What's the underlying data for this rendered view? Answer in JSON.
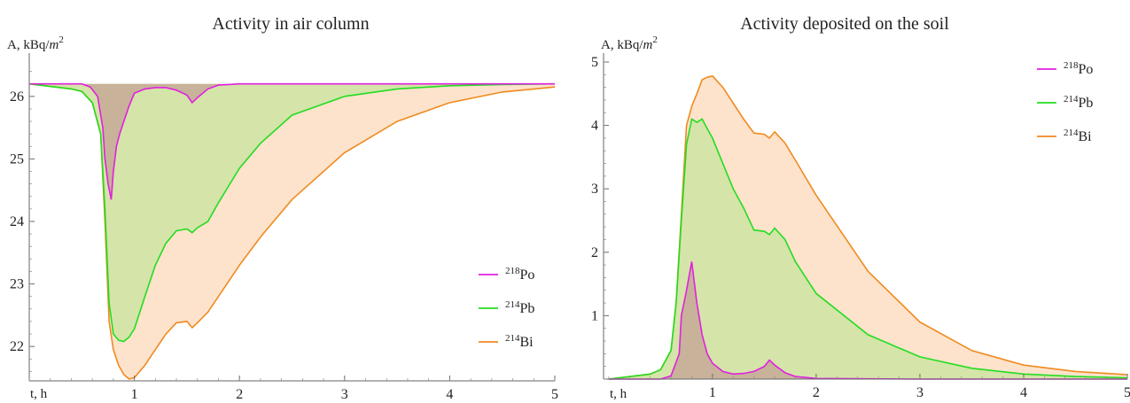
{
  "chart_data": [
    {
      "type": "area",
      "title": "Activity in air column",
      "ylabel": "A, kBq/m2",
      "ylabel_text": "A, kBq/",
      "ylabel_unit_base": "m",
      "ylabel_unit_exp": "2",
      "xlabel": "t, h",
      "xlim": [
        0,
        5
      ],
      "ylim": [
        21.45,
        26.55
      ],
      "xticks": [
        "1",
        "2",
        "3",
        "4",
        "5"
      ],
      "yticks": [
        "22",
        "23",
        "24",
        "25",
        "26"
      ],
      "baseline": 26.2,
      "fill_mode": "baseline",
      "legend_position": "lower-right",
      "series": [
        {
          "name": "218Po",
          "mass": "218",
          "element": "Po",
          "color": "#e020e0",
          "fill": "#c8b29a",
          "x": [
            0,
            0.5,
            0.58,
            0.65,
            0.7,
            0.72,
            0.75,
            0.78,
            0.8,
            0.83,
            0.86,
            0.9,
            0.95,
            1.0,
            1.1,
            1.2,
            1.3,
            1.4,
            1.5,
            1.55,
            1.6,
            1.7,
            1.8,
            2.0,
            2.5,
            3,
            4,
            5
          ],
          "y": [
            26.2,
            26.2,
            26.15,
            26.0,
            25.5,
            25.0,
            24.6,
            24.35,
            24.8,
            25.2,
            25.4,
            25.6,
            25.85,
            26.05,
            26.12,
            26.14,
            26.14,
            26.1,
            26.02,
            25.9,
            25.98,
            26.12,
            26.18,
            26.2,
            26.2,
            26.2,
            26.2,
            26.2
          ]
        },
        {
          "name": "214Pb",
          "mass": "214",
          "element": "Pb",
          "color": "#22dd22",
          "fill": "#d5e4a9",
          "x": [
            0,
            0.4,
            0.5,
            0.6,
            0.68,
            0.72,
            0.76,
            0.8,
            0.85,
            0.9,
            0.95,
            1.0,
            1.1,
            1.2,
            1.3,
            1.4,
            1.5,
            1.55,
            1.6,
            1.7,
            1.8,
            2.0,
            2.2,
            2.5,
            3.0,
            3.5,
            4.0,
            4.5,
            5.0
          ],
          "y": [
            26.2,
            26.12,
            26.08,
            25.9,
            25.4,
            24.2,
            22.7,
            22.2,
            22.1,
            22.08,
            22.15,
            22.28,
            22.8,
            23.3,
            23.65,
            23.85,
            23.88,
            23.82,
            23.9,
            24.0,
            24.3,
            24.85,
            25.25,
            25.7,
            26.0,
            26.12,
            26.17,
            26.19,
            26.2
          ]
        },
        {
          "name": "214Bi",
          "mass": "214",
          "element": "Bi",
          "color": "#f08a20",
          "fill": "#fde3cb",
          "x": [
            0,
            0.4,
            0.5,
            0.6,
            0.68,
            0.72,
            0.76,
            0.8,
            0.85,
            0.9,
            0.95,
            1.0,
            1.1,
            1.2,
            1.3,
            1.4,
            1.5,
            1.55,
            1.6,
            1.7,
            1.8,
            2.0,
            2.2,
            2.5,
            3.0,
            3.5,
            4.0,
            4.5,
            5.0
          ],
          "y": [
            26.2,
            26.12,
            26.08,
            25.9,
            25.4,
            24.0,
            22.4,
            21.95,
            21.7,
            21.55,
            21.48,
            21.5,
            21.7,
            21.95,
            22.2,
            22.38,
            22.4,
            22.3,
            22.38,
            22.55,
            22.8,
            23.3,
            23.75,
            24.35,
            25.1,
            25.6,
            25.9,
            26.07,
            26.15
          ]
        }
      ]
    },
    {
      "type": "area",
      "title": "Activity deposited on the soil",
      "ylabel": "A, kBq/m2",
      "ylabel_text": "A, kBq/",
      "ylabel_unit_base": "m",
      "ylabel_unit_exp": "2",
      "xlabel": "t, h",
      "xlim": [
        -0.05,
        5.0
      ],
      "ylim": [
        0,
        5
      ],
      "xticks": [
        "1",
        "2",
        "3",
        "4",
        "5"
      ],
      "yticks": [
        "1",
        "2",
        "3",
        "4",
        "5"
      ],
      "baseline": 0,
      "fill_mode": "baseline",
      "legend_position": "top-right",
      "series": [
        {
          "name": "218Po",
          "mass": "218",
          "element": "Po",
          "color": "#e020e0",
          "fill": "#c8b29a",
          "x": [
            0,
            0.5,
            0.6,
            0.68,
            0.7,
            0.75,
            0.8,
            0.85,
            0.9,
            0.95,
            1.0,
            1.1,
            1.2,
            1.3,
            1.4,
            1.5,
            1.55,
            1.6,
            1.7,
            1.8,
            2.0,
            3,
            4,
            5
          ],
          "y": [
            0,
            0,
            0.05,
            0.4,
            1.0,
            1.4,
            1.85,
            1.2,
            0.7,
            0.4,
            0.25,
            0.12,
            0.08,
            0.09,
            0.12,
            0.2,
            0.3,
            0.22,
            0.1,
            0.04,
            0.01,
            0,
            0,
            0
          ]
        },
        {
          "name": "214Pb",
          "mass": "214",
          "element": "Pb",
          "color": "#22dd22",
          "fill": "#d5e4a9",
          "x": [
            0,
            0.4,
            0.5,
            0.6,
            0.65,
            0.7,
            0.75,
            0.8,
            0.85,
            0.9,
            0.95,
            1.0,
            1.1,
            1.2,
            1.3,
            1.4,
            1.5,
            1.55,
            1.6,
            1.7,
            1.8,
            2.0,
            2.5,
            3.0,
            3.5,
            4.0,
            4.5,
            5.0
          ],
          "y": [
            0,
            0.08,
            0.15,
            0.45,
            1.2,
            2.5,
            3.7,
            4.1,
            4.05,
            4.1,
            3.95,
            3.8,
            3.4,
            3.0,
            2.7,
            2.35,
            2.33,
            2.28,
            2.38,
            2.2,
            1.85,
            1.35,
            0.7,
            0.35,
            0.17,
            0.08,
            0.04,
            0.02
          ]
        },
        {
          "name": "214Bi",
          "mass": "214",
          "element": "Bi",
          "color": "#f08a20",
          "fill": "#fde3cb",
          "x": [
            0,
            0.4,
            0.5,
            0.6,
            0.65,
            0.7,
            0.75,
            0.8,
            0.85,
            0.9,
            0.95,
            1.0,
            1.1,
            1.2,
            1.3,
            1.4,
            1.5,
            1.55,
            1.6,
            1.7,
            1.8,
            2.0,
            2.5,
            3.0,
            3.5,
            4.0,
            4.5,
            5.0
          ],
          "y": [
            0,
            0.08,
            0.15,
            0.45,
            1.2,
            2.6,
            4.0,
            4.3,
            4.5,
            4.72,
            4.76,
            4.78,
            4.6,
            4.35,
            4.1,
            3.88,
            3.86,
            3.8,
            3.9,
            3.72,
            3.45,
            2.9,
            1.7,
            0.9,
            0.45,
            0.22,
            0.12,
            0.07
          ]
        }
      ]
    }
  ]
}
